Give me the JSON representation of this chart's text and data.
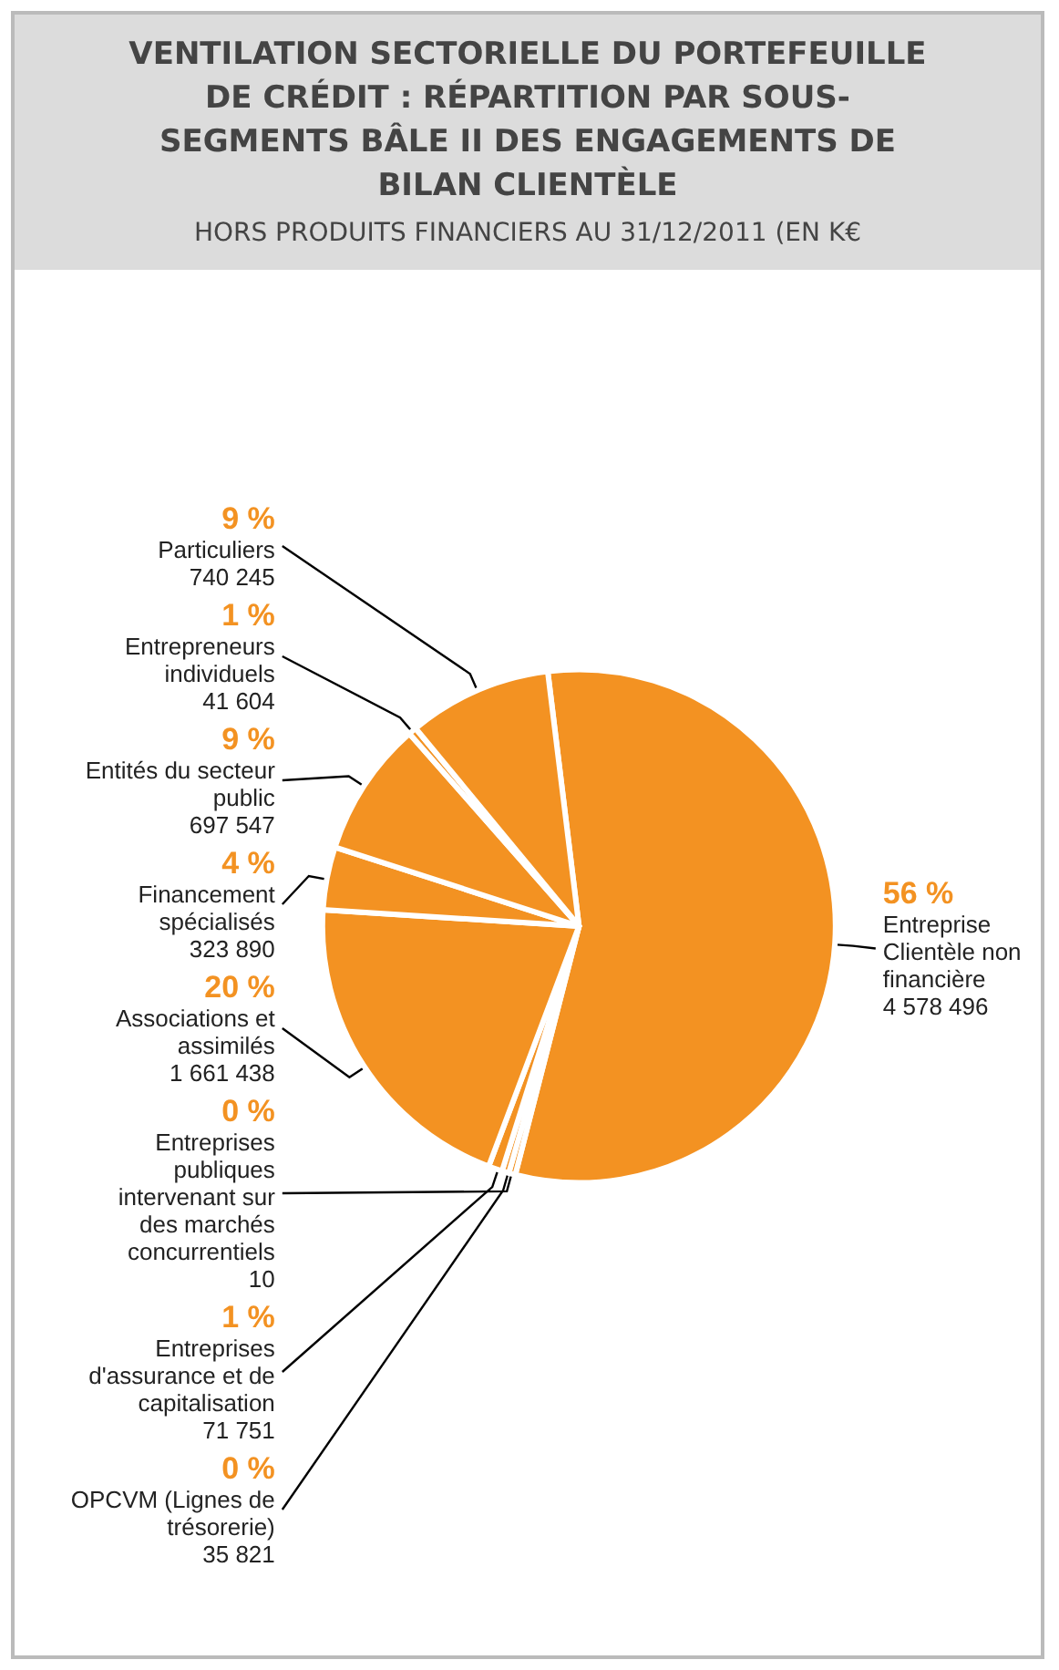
{
  "chart_data": {
    "type": "pie",
    "title": "VENTILATION SECTORIELLE DU PORTEFEUILLE DE CRÉDIT : RÉPARTITION PAR SOUS-SEGMENTS BÂLE II DES ENGAGEMENTS DE BILAN CLIENTÈLE",
    "subtitle": "HORS PRODUITS FINANCIERS AU 31/12/2011 (EN K€",
    "categories": [
      "Entreprise Clientèle non financière",
      "Entreprises publiques intervenant sur des marchés concurrentiels",
      "OPCVM (Lignes de trésorerie)",
      "Entreprises d'assurance et de capitalisation",
      "Associations et assimilés",
      "Financement spécialisés",
      "Entités du secteur public",
      "Entrepreneurs individuels",
      "Particuliers"
    ],
    "values": [
      4578496,
      10,
      35821,
      71751,
      1661438,
      323890,
      697547,
      41604,
      740245
    ],
    "annotations": [
      "56 %",
      "0 %",
      "0 %",
      "1 %",
      "20 %",
      "4 %",
      "9 %",
      "1 %",
      "9 %"
    ],
    "value_labels": [
      "4 578 496",
      "10",
      "35 821",
      "71 751",
      "1 661 438",
      "323 890",
      "697 547",
      "41 604",
      "740 245"
    ],
    "colors": [
      "#f39222",
      "#f39222",
      "#f39222",
      "#f39222",
      "#f39222",
      "#f39222",
      "#f39222",
      "#f39222",
      "#f39222"
    ],
    "data_labels": true,
    "legend": false
  }
}
